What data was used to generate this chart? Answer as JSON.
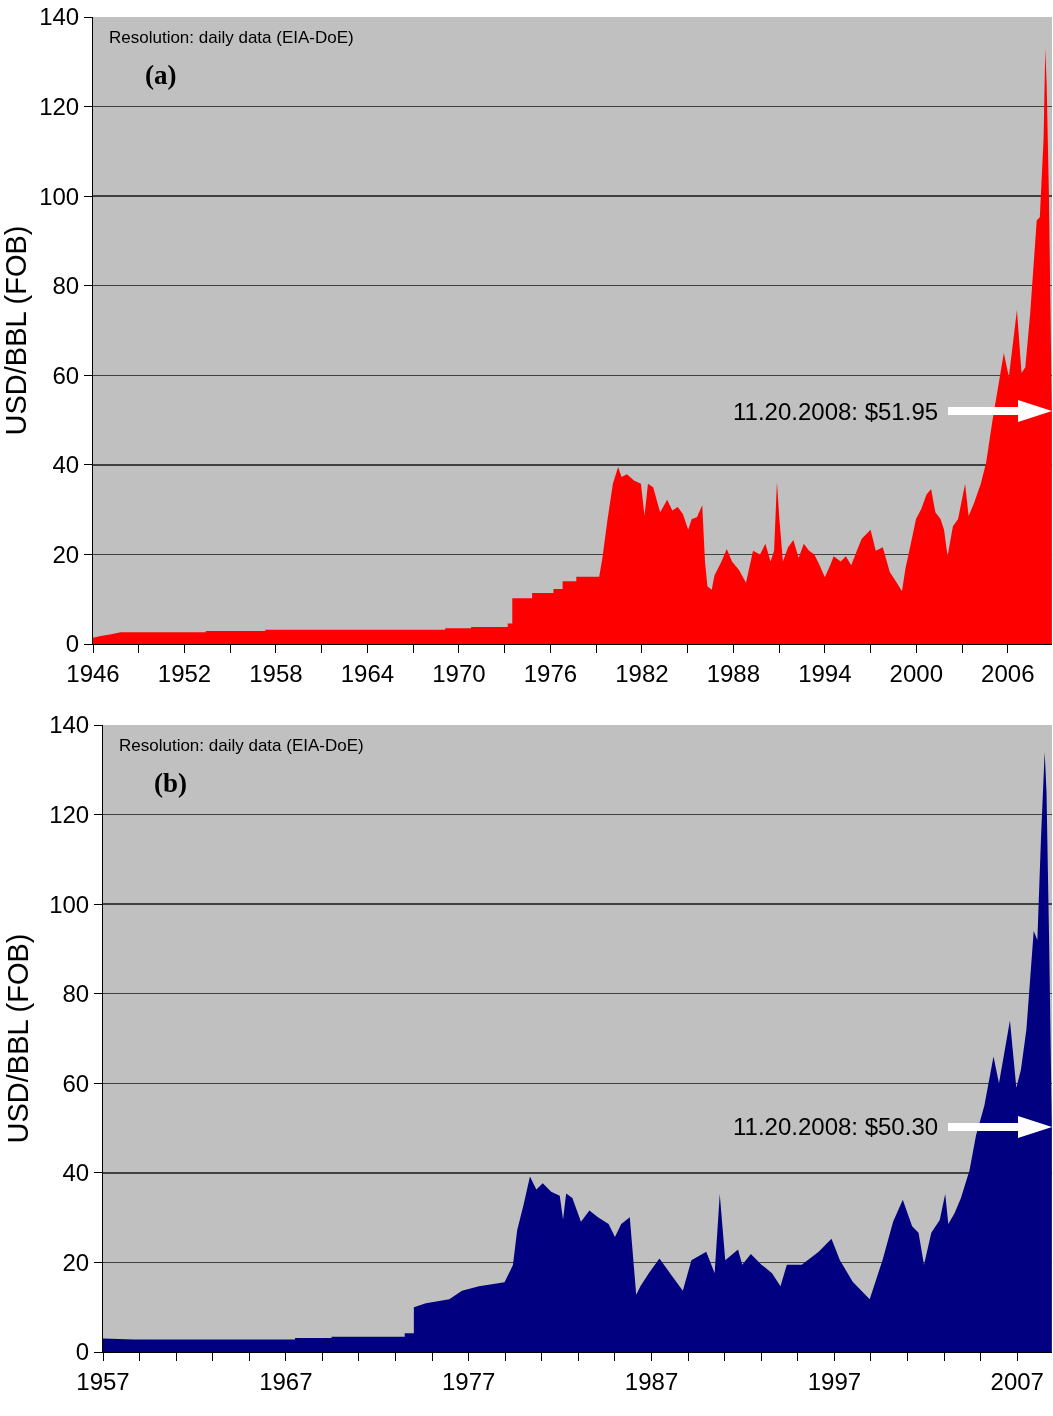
{
  "chart_data": [
    {
      "type": "area",
      "ylabel": "USD/BBL (FOB)",
      "xlim": [
        1946,
        2008.9
      ],
      "ylim": [
        0,
        140
      ],
      "yticks": [
        0,
        20,
        40,
        60,
        80,
        100,
        120,
        140
      ],
      "xticks": [
        1946,
        {
          "value": 1949,
          "label": null
        },
        1952,
        {
          "value": 1955,
          "label": null
        },
        1958,
        {
          "value": 1961,
          "label": null
        },
        1964,
        {
          "value": 1967,
          "label": null
        },
        1970,
        {
          "value": 1973,
          "label": null
        },
        1976,
        {
          "value": 1979,
          "label": null
        },
        1982,
        {
          "value": 1985,
          "label": null
        },
        1988,
        {
          "value": 1991,
          "label": null
        },
        1994,
        {
          "value": 1997,
          "label": null
        },
        2000,
        {
          "value": 2003,
          "label": null
        },
        2006
      ],
      "grid": "y",
      "annotations": [
        "Resolution: daily data (EIA-DoE)",
        "(a)",
        "11.20.2008: $51.95"
      ],
      "series": [
        {
          "color": "#ff0000",
          "x": [
            1946,
            1946.5,
            1947.2,
            1947.8,
            1953.4,
            1953.4,
            1957.3,
            1957.3,
            1969.1,
            1969.1,
            1970.8,
            1970.8,
            1973.2,
            1973.2,
            1973.5,
            1973.5,
            1974.8,
            1974.8,
            1976.2,
            1976.2,
            1976.8,
            1976.8,
            1977.7,
            1977.7,
            1979.2,
            1979.41,
            1979.75,
            1980.1,
            1980.44,
            1980.67,
            1981.02,
            1981.48,
            1981.94,
            1982.17,
            1982.4,
            1982.74,
            1983.2,
            1983.66,
            1984.0,
            1984.35,
            1984.69,
            1985.04,
            1985.27,
            1985.61,
            1985.96,
            1986.14,
            1986.3,
            1986.58,
            1986.76,
            1987.22,
            1987.57,
            1987.91,
            1988.37,
            1988.83,
            1989.29,
            1989.75,
            1990.1,
            1990.44,
            1990.67,
            1990.86,
            1991.02,
            1991.25,
            1991.59,
            1991.94,
            1992.28,
            1992.62,
            1992.97,
            1993.31,
            1993.66,
            1994.0,
            1994.35,
            1994.58,
            1995.04,
            1995.38,
            1995.73,
            1996.19,
            1996.42,
            1997.0,
            1997.34,
            1997.8,
            1998.26,
            1998.72,
            1999.06,
            1999.29,
            1999.64,
            1999.98,
            2000.33,
            2000.67,
            2000.97,
            2001.25,
            2001.59,
            2001.82,
            2002.05,
            2002.4,
            2002.74,
            2003.2,
            2003.43,
            2003.78,
            2004.23,
            2004.58,
            2005.0,
            2005.74,
            2006.07,
            2006.6,
            2006.9,
            2007.15,
            2007.47,
            2007.9,
            2008.1,
            2008.35,
            2008.46,
            2008.55,
            2008.7,
            2008.89
          ],
          "values": [
            1.4,
            1.8,
            2.2,
            2.6,
            2.6,
            2.9,
            2.9,
            3.2,
            3.2,
            3.5,
            3.5,
            3.8,
            3.8,
            4.6,
            4.6,
            10.2,
            10.2,
            11.4,
            11.4,
            12.3,
            12.3,
            14,
            14,
            15,
            15,
            19.2,
            27.9,
            35.8,
            39.5,
            37.3,
            37.9,
            36.5,
            35.8,
            28.6,
            35.8,
            35.0,
            29.4,
            32.2,
            29.8,
            30.6,
            29.0,
            25.5,
            27.9,
            28.3,
            31.0,
            18.4,
            12.9,
            12.1,
            15.3,
            18.4,
            21.2,
            18.4,
            16.5,
            13.7,
            20.8,
            20.0,
            22.4,
            18.4,
            20.8,
            36.2,
            27.9,
            18.4,
            21.6,
            23.2,
            19.2,
            22.4,
            20.8,
            20.0,
            17.6,
            14.9,
            17.6,
            19.6,
            18.4,
            19.6,
            17.6,
            21.6,
            23.5,
            25.5,
            20.8,
            21.6,
            16.1,
            13.7,
            11.8,
            16.9,
            22.4,
            27.9,
            30.2,
            33.4,
            34.6,
            29.4,
            27.9,
            25.5,
            19.6,
            26.3,
            27.9,
            35.8,
            28.6,
            31.4,
            35.8,
            40.5,
            50,
            65,
            59.6,
            74.6,
            60.5,
            61.8,
            73.9,
            94.6,
            95.3,
            113,
            133,
            125,
            100,
            51.95
          ]
        }
      ]
    },
    {
      "type": "area",
      "ylabel": "USD/BBL (FOB)",
      "xlim": [
        1957,
        2008.9
      ],
      "ylim": [
        0,
        140
      ],
      "yticks": [
        0,
        20,
        40,
        60,
        80,
        100,
        120,
        140
      ],
      "xticks": [
        1957,
        {
          "value": 1959,
          "label": null
        },
        {
          "value": 1961,
          "label": null
        },
        {
          "value": 1963,
          "label": null
        },
        {
          "value": 1965,
          "label": null
        },
        1967,
        {
          "value": 1969,
          "label": null
        },
        {
          "value": 1971,
          "label": null
        },
        {
          "value": 1973,
          "label": null
        },
        {
          "value": 1975,
          "label": null
        },
        1977,
        {
          "value": 1979,
          "label": null
        },
        {
          "value": 1981,
          "label": null
        },
        {
          "value": 1983,
          "label": null
        },
        {
          "value": 1985,
          "label": null
        },
        1987,
        {
          "value": 1989,
          "label": null
        },
        {
          "value": 1991,
          "label": null
        },
        {
          "value": 1993,
          "label": null
        },
        {
          "value": 1995,
          "label": null
        },
        1997,
        {
          "value": 1999,
          "label": null
        },
        {
          "value": 2001,
          "label": null
        },
        {
          "value": 2003,
          "label": null
        },
        {
          "value": 2005,
          "label": null
        },
        2007
      ],
      "grid": "y",
      "annotations": [
        "Resolution: daily data (EIA-DoE)",
        "(b)",
        "11.20.2008: $50.30"
      ],
      "series": [
        {
          "color": "#000080",
          "x": [
            1957,
            1958.7,
            1967.5,
            1967.5,
            1969.5,
            1969.5,
            1973.5,
            1973.5,
            1974.0,
            1974.0,
            1974.66,
            1975.94,
            1976.63,
            1977.56,
            1978.96,
            1979.42,
            1979.65,
            1980.0,
            1980.35,
            1980.7,
            1981.05,
            1981.51,
            1981.98,
            1982.16,
            1982.33,
            1982.67,
            1983.14,
            1983.6,
            1984.07,
            1984.65,
            1985.0,
            1985.34,
            1985.81,
            1986.16,
            1986.39,
            1986.85,
            1987.43,
            1988.01,
            1988.71,
            1989.18,
            1989.99,
            1990.45,
            1990.73,
            1991.03,
            1991.73,
            1991.96,
            1992.43,
            1993.01,
            1993.59,
            1994.05,
            1994.4,
            1995.21,
            1996.14,
            1996.84,
            1997.3,
            1998.0,
            1998.93,
            1999.63,
            2000.21,
            2000.74,
            2001.25,
            2001.6,
            2001.9,
            2002.3,
            2002.76,
            2003.06,
            2003.23,
            2003.57,
            2003.92,
            2004.39,
            2004.74,
            2005.2,
            2005.7,
            2006.0,
            2006.6,
            2006.95,
            2007.2,
            2007.5,
            2007.9,
            2008.1,
            2008.3,
            2008.5,
            2008.6,
            2008.75,
            2008.89
          ],
          "values": [
            3.0,
            2.8,
            2.8,
            3.1,
            3.1,
            3.4,
            3.4,
            4.2,
            4.2,
            10.0,
            10.9,
            11.8,
            13.7,
            14.7,
            15.6,
            19.4,
            27.2,
            32.9,
            39.2,
            36.3,
            37.7,
            35.8,
            34.9,
            29.6,
            35.4,
            34.4,
            29.1,
            31.6,
            30.1,
            28.6,
            25.7,
            28.6,
            30.1,
            12.8,
            14.7,
            17.6,
            20.9,
            17.6,
            13.7,
            20.5,
            22.4,
            17.6,
            35.3,
            20.5,
            22.9,
            19.5,
            21.9,
            19.5,
            17.6,
            14.7,
            19.5,
            19.5,
            22.4,
            25.3,
            20.5,
            15.7,
            11.8,
            20.5,
            29.1,
            34.0,
            28.1,
            26.6,
            19.5,
            26.6,
            29.5,
            35.3,
            28.6,
            31.0,
            34.4,
            40.6,
            48.3,
            55,
            66,
            60,
            74,
            59,
            63,
            72,
            94,
            92,
            115,
            134,
            125,
            90,
            50.3
          ]
        }
      ]
    }
  ]
}
